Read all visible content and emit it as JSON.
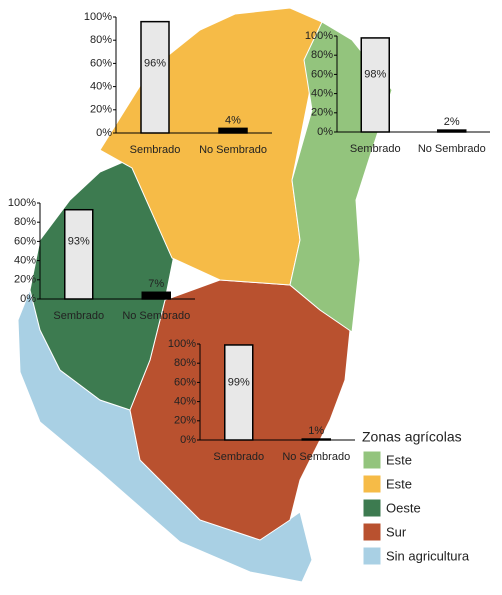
{
  "chart_data": [
    {
      "type": "bar",
      "categories": [
        "Sembrado",
        "No Sembrado"
      ],
      "values": [
        96,
        4
      ],
      "value_labels": [
        "96%",
        "4%"
      ],
      "colors": [
        "#e8e8e8",
        "#000000"
      ],
      "ylim": [
        0,
        100
      ],
      "yticks": [
        {
          "value": 0,
          "label": "0%"
        },
        {
          "value": 20,
          "label": "20%"
        },
        {
          "value": 40,
          "label": "40%"
        },
        {
          "value": 60,
          "label": "60%"
        },
        {
          "value": 80,
          "label": "80%"
        },
        {
          "value": 100,
          "label": "100%"
        }
      ]
    },
    {
      "type": "bar",
      "categories": [
        "Sembrado",
        "No Sembrado"
      ],
      "values": [
        98,
        2
      ],
      "value_labels": [
        "98%",
        "2%"
      ],
      "colors": [
        "#e8e8e8",
        "#000000"
      ],
      "ylim": [
        0,
        100
      ],
      "yticks": [
        {
          "value": 0,
          "label": "0%"
        },
        {
          "value": 20,
          "label": "20%"
        },
        {
          "value": 40,
          "label": "40%"
        },
        {
          "value": 60,
          "label": "60%"
        },
        {
          "value": 80,
          "label": "80%"
        },
        {
          "value": 100,
          "label": "100%"
        }
      ]
    },
    {
      "type": "bar",
      "categories": [
        "Sembrado",
        "No Sembrado"
      ],
      "values": [
        93,
        7
      ],
      "value_labels": [
        "93%",
        "7%"
      ],
      "colors": [
        "#e8e8e8",
        "#000000"
      ],
      "ylim": [
        0,
        100
      ],
      "yticks": [
        {
          "value": 0,
          "label": "0%"
        },
        {
          "value": 20,
          "label": "20%"
        },
        {
          "value": 40,
          "label": "40%"
        },
        {
          "value": 60,
          "label": "60%"
        },
        {
          "value": 80,
          "label": "80%"
        },
        {
          "value": 100,
          "label": "100%"
        }
      ]
    },
    {
      "type": "bar",
      "categories": [
        "Sembrado",
        "No Sembrado"
      ],
      "values": [
        99,
        1
      ],
      "value_labels": [
        "99%",
        "1%"
      ],
      "colors": [
        "#e8e8e8",
        "#000000"
      ],
      "ylim": [
        0,
        100
      ],
      "yticks": [
        {
          "value": 0,
          "label": "0%"
        },
        {
          "value": 20,
          "label": "20%"
        },
        {
          "value": 40,
          "label": "40%"
        },
        {
          "value": 60,
          "label": "60%"
        },
        {
          "value": 80,
          "label": "80%"
        },
        {
          "value": 100,
          "label": "100%"
        }
      ]
    }
  ],
  "legend": {
    "title": "Zonas agrícolas",
    "items": [
      {
        "label": "Este",
        "color": "#93c47d"
      },
      {
        "label": "Este",
        "color": "#f6bb47"
      },
      {
        "label": "Oeste",
        "color": "#3d7b50"
      },
      {
        "label": "Sur",
        "color": "#b9512f"
      },
      {
        "label": "Sin agricultura",
        "color": "#a9d0e4"
      }
    ]
  }
}
